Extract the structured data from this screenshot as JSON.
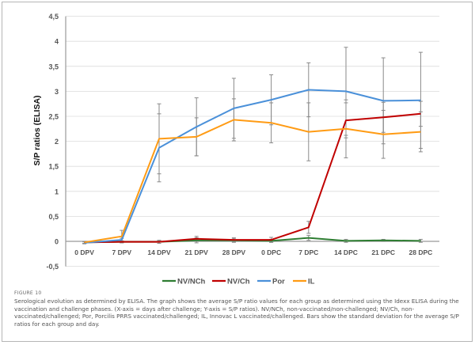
{
  "chart_data": {
    "type": "line",
    "title": "",
    "xlabel": "",
    "ylabel": "S/P ratios (ELISA)",
    "ylim": [
      -0.5,
      4.5
    ],
    "yticks": [
      "-0,5",
      "0",
      "0,5",
      "1",
      "1,5",
      "2",
      "2,5",
      "3",
      "3,5",
      "4",
      "4,5"
    ],
    "grid": true,
    "legend_position": "bottom",
    "categories": [
      "0 DPV",
      "7 DPV",
      "14 DPV",
      "21 DPV",
      "28 DPV",
      "0 DPC",
      "7 DPC",
      "14 DPC",
      "21 DPC",
      "28 DPC"
    ],
    "series": [
      {
        "name": "NV/NCh",
        "color": "#2e7d32",
        "values": [
          -0.02,
          -0.01,
          -0.01,
          0.02,
          0.02,
          0.01,
          0.07,
          0.01,
          0.02,
          0.01
        ],
        "sd": [
          0.02,
          0.02,
          0.03,
          0.05,
          0.04,
          0.03,
          0.05,
          0.03,
          0.02,
          0.03
        ]
      },
      {
        "name": "NV/Ch",
        "color": "#c00000",
        "values": [
          -0.02,
          -0.01,
          -0.01,
          0.05,
          0.03,
          0.03,
          0.28,
          2.42,
          2.48,
          2.55
        ],
        "sd": [
          0.02,
          0.02,
          0.03,
          0.05,
          0.04,
          0.05,
          0.12,
          0.35,
          0.3,
          0.25
        ]
      },
      {
        "name": "Por",
        "color": "#4a90d9",
        "values": [
          -0.03,
          0.03,
          1.87,
          2.29,
          2.66,
          2.83,
          3.03,
          3.0,
          2.81,
          2.82
        ],
        "sd": [
          0.02,
          0.03,
          0.68,
          0.58,
          0.6,
          0.5,
          0.54,
          0.88,
          0.86,
          0.96
        ]
      },
      {
        "name": "IL",
        "color": "#ff9b14",
        "values": [
          -0.02,
          0.1,
          2.05,
          2.09,
          2.43,
          2.37,
          2.19,
          2.25,
          2.14,
          2.19
        ],
        "sd": [
          0.02,
          0.12,
          0.7,
          0.38,
          0.42,
          0.4,
          0.58,
          0.58,
          0.48,
          0.4
        ]
      }
    ]
  },
  "caption": {
    "figure_label": "FIGURE 10",
    "text": "Serological evolution as determined by ELISA. The graph shows the average S/P ratio values for each group as determined using the Idexx ELISA during the vaccination and challenge phases. (X-axis = days after challenge; Y-axis = S/P ratios). NV/NCh, non-vaccinated/non-challenged; NV/Ch, non-vaccinated/challenged; Por, Porcilis PRRS vaccinated/challenged; IL, Innovac L vaccinated/challenged. Bars show the standard deviation for the average S/P ratios for each group and day."
  }
}
